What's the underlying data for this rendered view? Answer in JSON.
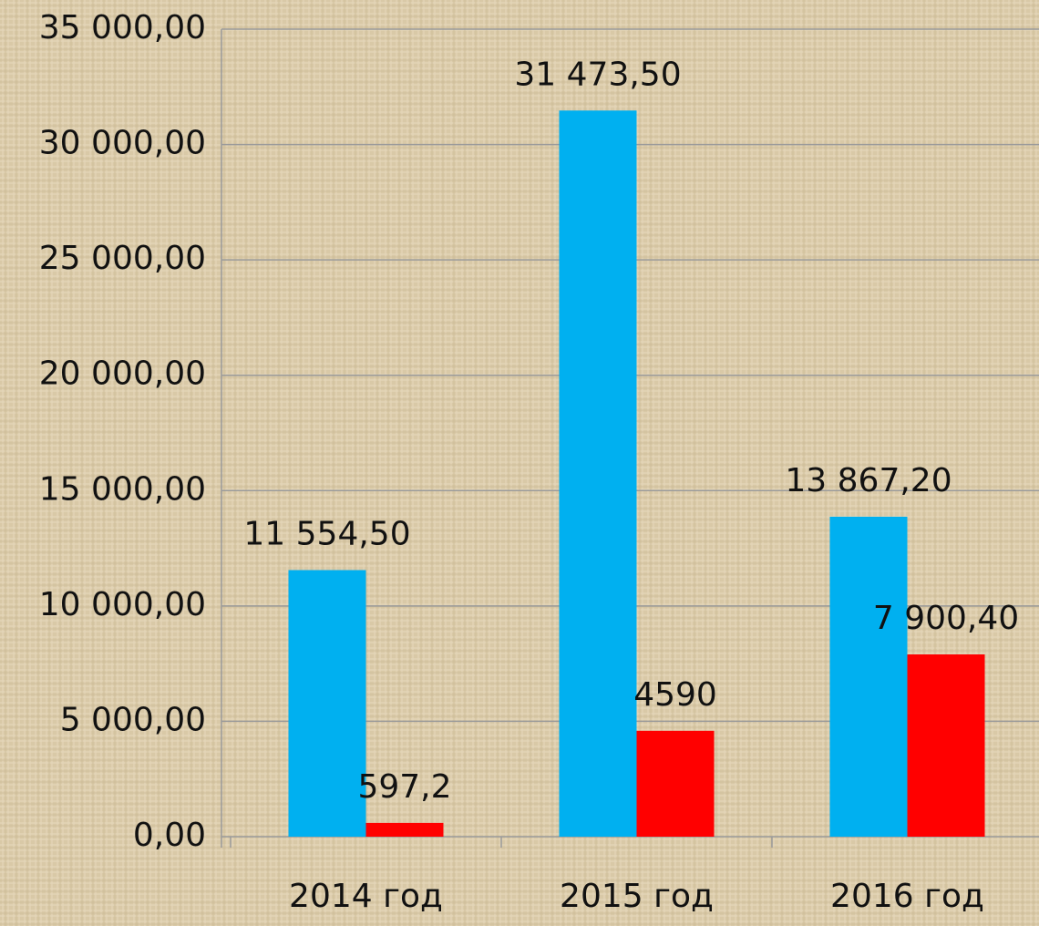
{
  "chart_data": {
    "type": "bar",
    "categories": [
      "2014 год",
      "2015 год",
      "2016 год"
    ],
    "series": [
      {
        "color": "#00b0f0",
        "values": [
          11554.5,
          31473.5,
          13867.2
        ],
        "value_labels": [
          "11 554,50",
          "31 473,50",
          "13 867,20"
        ]
      },
      {
        "color": "#ff0000",
        "values": [
          597.2,
          4590,
          7900.4
        ],
        "value_labels": [
          "597,2",
          "4590",
          "7 900,40"
        ]
      }
    ],
    "ylim": [
      0,
      35000
    ],
    "yticks": [
      {
        "value": 0,
        "label": "0,00"
      },
      {
        "value": 5000,
        "label": "5 000,00"
      },
      {
        "value": 10000,
        "label": "10 000,00"
      },
      {
        "value": 15000,
        "label": "15 000,00"
      },
      {
        "value": 20000,
        "label": "20 000,00"
      },
      {
        "value": 25000,
        "label": "25 000,00"
      },
      {
        "value": 30000,
        "label": "30 000,00"
      },
      {
        "value": 35000,
        "label": "35 000,00"
      }
    ],
    "grid": true
  }
}
